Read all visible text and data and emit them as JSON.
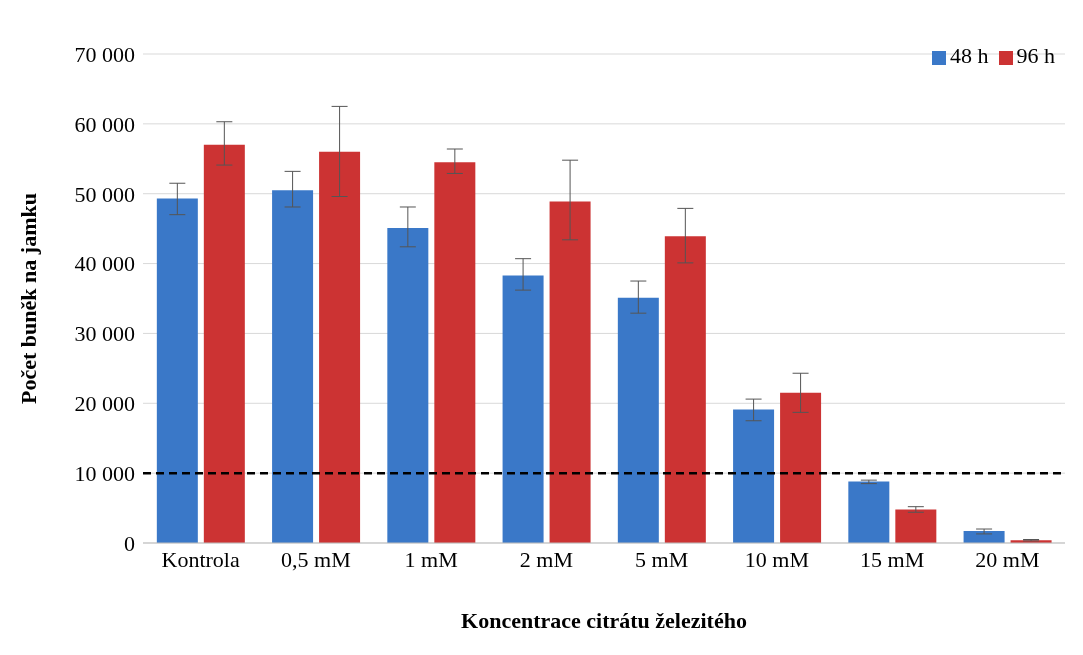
{
  "chart_data": {
    "type": "bar",
    "xlabel": "Koncentrace citrátu železitého",
    "ylabel": "Počet buněk na jamku",
    "categories": [
      "Kontrola",
      "0,5 mM",
      "1 mM",
      "2 mM",
      "5 mM",
      "10 mM",
      "15 mM",
      "20 mM"
    ],
    "series": [
      {
        "name": "48 h",
        "color": "#3a78c8",
        "values": [
          49300,
          50500,
          45100,
          38300,
          35100,
          19100,
          8800,
          1700
        ],
        "errors": [
          [
            47000,
            51500
          ],
          [
            48100,
            53200
          ],
          [
            42400,
            48100
          ],
          [
            36200,
            40700
          ],
          [
            32900,
            37500
          ],
          [
            17500,
            20600
          ],
          [
            8500,
            9000
          ],
          [
            1300,
            2000
          ]
        ]
      },
      {
        "name": "96 h",
        "color": "#cc3333",
        "values": [
          57000,
          56000,
          54500,
          48900,
          43900,
          21500,
          4800,
          400
        ],
        "errors": [
          [
            54100,
            60300
          ],
          [
            49600,
            62500
          ],
          [
            52900,
            56400
          ],
          [
            43400,
            54800
          ],
          [
            40100,
            47900
          ],
          [
            18700,
            24300
          ],
          [
            4400,
            5200
          ],
          [
            300,
            500
          ]
        ]
      }
    ],
    "ylim": [
      0,
      70000
    ],
    "yticks": [
      {
        "value": 0,
        "label": "0"
      },
      {
        "value": 10000,
        "label": "10 000"
      },
      {
        "value": 20000,
        "label": "20 000"
      },
      {
        "value": 30000,
        "label": "30 000"
      },
      {
        "value": 40000,
        "label": "40 000"
      },
      {
        "value": 50000,
        "label": "50 000"
      },
      {
        "value": 60000,
        "label": "60 000"
      },
      {
        "value": 70000,
        "label": "70 000"
      }
    ],
    "grid": "y",
    "legend": "top right",
    "ref_lines": [
      {
        "axis": "y",
        "value": 10000,
        "color": "#000000",
        "line_style": "dashed"
      }
    ]
  }
}
